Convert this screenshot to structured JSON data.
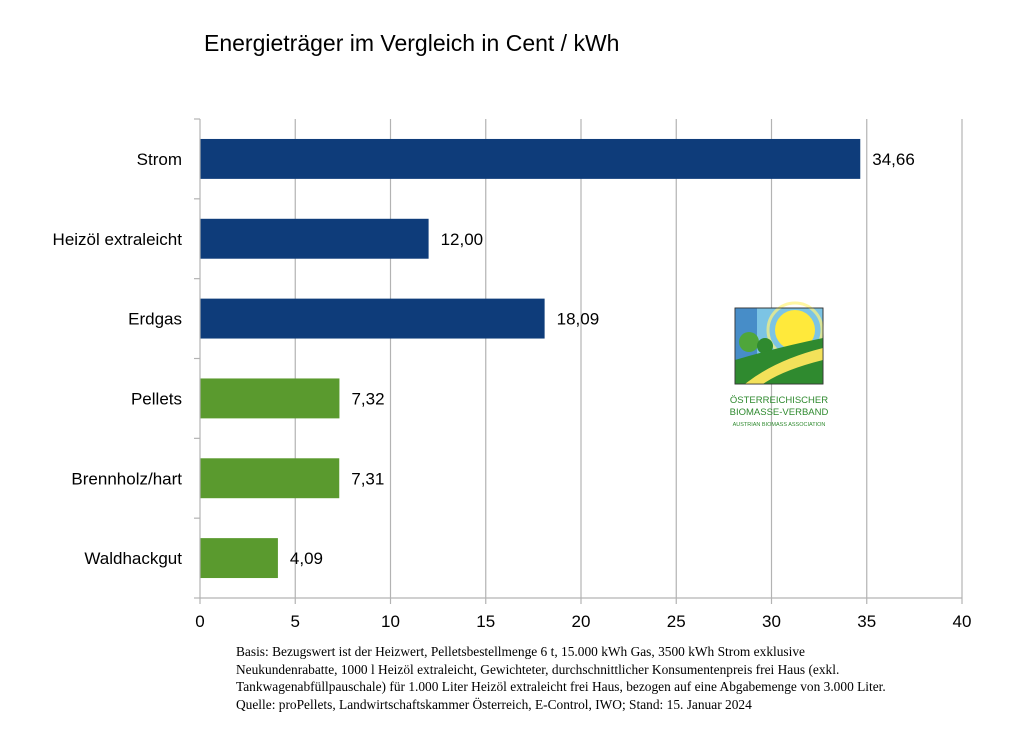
{
  "chart_data": {
    "type": "bar",
    "orientation": "horizontal",
    "title": "Energieträger im Vergleich in Cent / kWh",
    "xlabel": "",
    "ylabel": "",
    "xlim": [
      0,
      40
    ],
    "ticks": [
      0,
      5,
      10,
      15,
      20,
      25,
      30,
      35,
      40
    ],
    "grid": true,
    "categories": [
      "Strom",
      "Heizöl extraleicht",
      "Erdgas",
      "Pellets",
      "Brennholz/hart",
      "Waldhackgut"
    ],
    "values": [
      34.66,
      12.0,
      18.09,
      7.32,
      7.31,
      4.09
    ],
    "value_labels": [
      "34,66",
      "12,00",
      "18,09",
      "7,32",
      "7,31",
      "4,09"
    ],
    "bar_colors": [
      "#0e3c7a",
      "#0e3c7a",
      "#0e3c7a",
      "#5a9a2e",
      "#5a9a2e",
      "#5a9a2e"
    ]
  },
  "logo": {
    "name": "oesterreichischer-biomasse-verband-logo",
    "line1": "Österreichischer",
    "line2": "Biomasse-Verband",
    "line3": "Austrian Biomass Association",
    "color": "#2f8a2f"
  },
  "note_lines": [
    "Basis: Bezugswert ist der Heizwert, Pelletsbestellmenge 6 t, 15.000 kWh Gas, 3500 kWh Strom exklusive",
    "Neukundenrabatte, 1000 l Heizöl extraleicht, Gewichteter, durchschnittlicher Konsumentenpreis frei Haus (exkl.",
    "Tankwagenabfüllpauschale) für 1.000 Liter Heizöl extraleicht frei Haus, bezogen auf eine Abgabemenge von 3.000 Liter.",
    "Quelle: proPellets, Landwirtschaftskammer Österreich, E-Control, IWO; Stand: 15. Januar 2024"
  ]
}
